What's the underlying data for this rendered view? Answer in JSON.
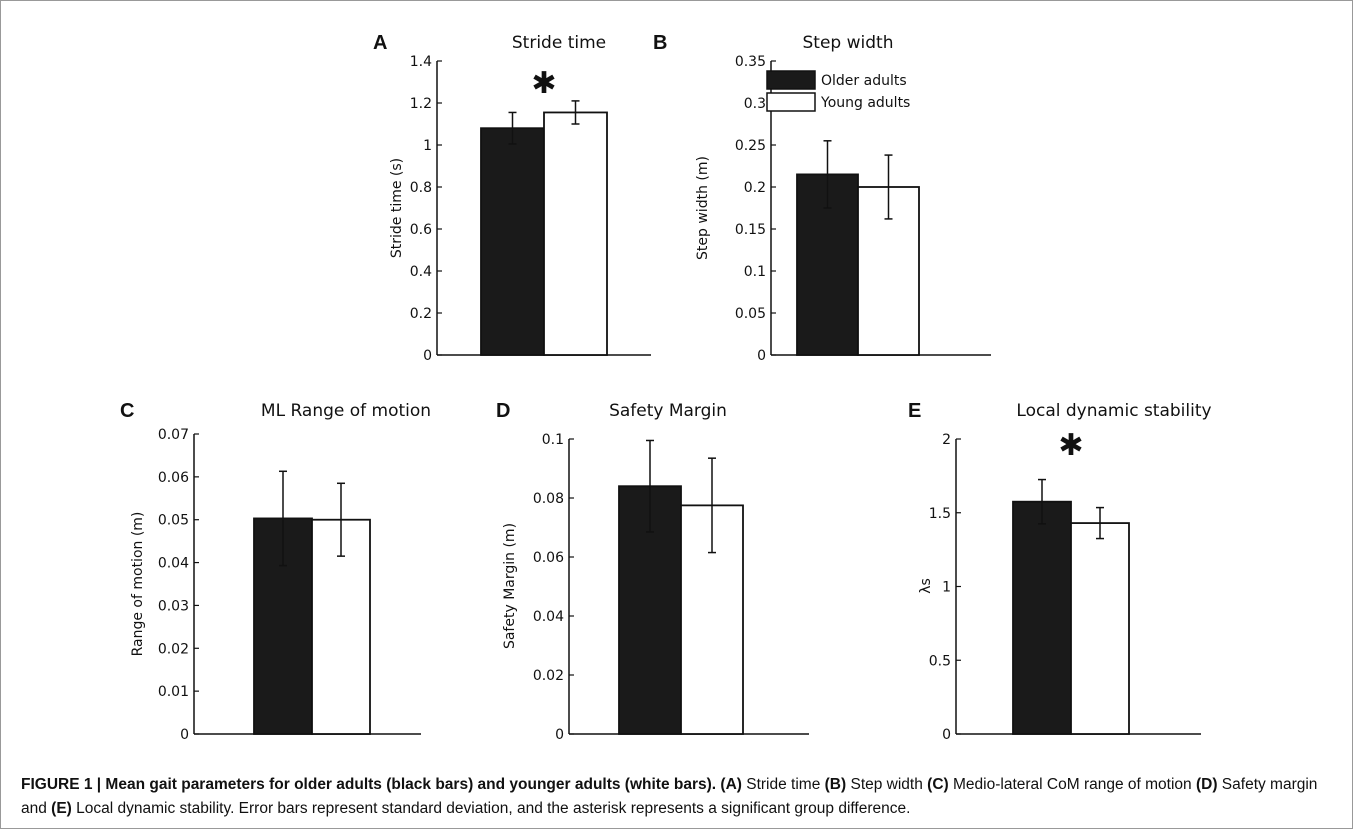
{
  "chart_data": [
    {
      "panel": "A",
      "type": "bar",
      "title": "Stride time",
      "ylabel": "Stride time (s)",
      "ylim": [
        0,
        1.4
      ],
      "yticks": [
        "0",
        "0.2",
        "0.4",
        "0.6",
        "0.8",
        "1",
        "1.2",
        "1.4"
      ],
      "categories": [
        "Older adults",
        "Young adults"
      ],
      "values": [
        1.08,
        1.155
      ],
      "errors": [
        0.075,
        0.055
      ],
      "colors": [
        "#1a1a1a",
        "#ffffff"
      ],
      "significance": "✱"
    },
    {
      "panel": "B",
      "type": "bar",
      "title": "Step width",
      "ylabel": "Step width (m)",
      "ylim": [
        0,
        0.35
      ],
      "yticks": [
        "0",
        "0.05",
        "0.1",
        "0.15",
        "0.2",
        "0.25",
        "0.3",
        "0.35"
      ],
      "categories": [
        "Older adults",
        "Young adults"
      ],
      "values": [
        0.215,
        0.2
      ],
      "errors": [
        0.04,
        0.038
      ],
      "colors": [
        "#1a1a1a",
        "#ffffff"
      ],
      "legend": [
        "Older adults",
        "Young adults"
      ],
      "legend_position": "top-right"
    },
    {
      "panel": "C",
      "type": "bar",
      "title": "ML Range of motion",
      "ylabel": "Range of motion (m)",
      "ylim": [
        0,
        0.07
      ],
      "yticks": [
        "0",
        "0.01",
        "0.02",
        "0.03",
        "0.04",
        "0.05",
        "0.06",
        "0.07"
      ],
      "categories": [
        "Older adults",
        "Young adults"
      ],
      "values": [
        0.0503,
        0.05
      ],
      "errors": [
        0.011,
        0.0085
      ],
      "colors": [
        "#1a1a1a",
        "#ffffff"
      ]
    },
    {
      "panel": "D",
      "type": "bar",
      "title": "Safety Margin",
      "ylabel": "Safety Margin (m)",
      "ylim": [
        0,
        0.1
      ],
      "yticks": [
        "0",
        "0.02",
        "0.04",
        "0.06",
        "0.08",
        "0.1"
      ],
      "categories": [
        "Older adults",
        "Young adults"
      ],
      "values": [
        0.084,
        0.0775
      ],
      "errors": [
        0.0155,
        0.016
      ],
      "colors": [
        "#1a1a1a",
        "#ffffff"
      ]
    },
    {
      "panel": "E",
      "type": "bar",
      "title": "Local dynamic stability",
      "ylabel": "λs",
      "ylim": [
        0,
        2
      ],
      "yticks": [
        "0",
        "0.5",
        "1",
        "1.5",
        "2"
      ],
      "categories": [
        "Older adults",
        "Young adults"
      ],
      "values": [
        1.575,
        1.43
      ],
      "errors": [
        0.15,
        0.105
      ],
      "colors": [
        "#1a1a1a",
        "#ffffff"
      ],
      "significance": "✱"
    }
  ],
  "caption": {
    "label": "FIGURE 1 | Mean gait parameters for older adults (black bars) and younger adults (white bars).",
    "parts": [
      {
        "ref": "(A)",
        "text": " Stride time "
      },
      {
        "ref": "(B)",
        "text": " Step width "
      },
      {
        "ref": "(C)",
        "text": " Medio-lateral CoM range of motion "
      },
      {
        "ref": "(D)",
        "text": " Safety margin and "
      },
      {
        "ref": "(E)",
        "text": " Local dynamic stability. Error bars represent standard deviation, and the asterisk represents a significant group difference."
      }
    ]
  }
}
